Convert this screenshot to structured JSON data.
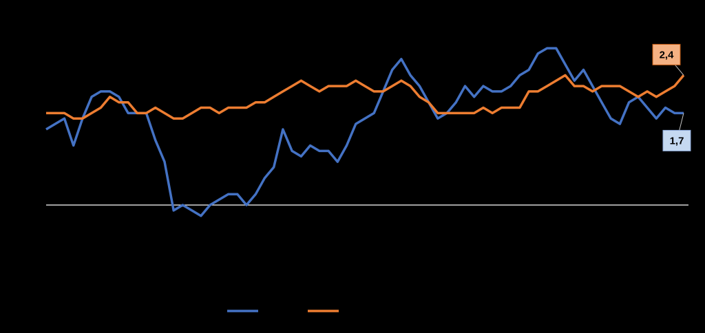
{
  "chart_data": {
    "type": "line",
    "ylim": [
      -1,
      3
    ],
    "series": [
      {
        "color": "#4472c4",
        "values": [
          1.4,
          1.5,
          1.6,
          1.1,
          1.6,
          2.0,
          2.1,
          2.1,
          2.0,
          1.7,
          1.7,
          1.7,
          1.2,
          0.8,
          -0.1,
          0.0,
          -0.1,
          -0.2,
          0.0,
          0.1,
          0.2,
          0.2,
          0.0,
          0.2,
          0.5,
          0.7,
          1.4,
          1.0,
          0.9,
          1.1,
          1.0,
          1.0,
          0.8,
          1.1,
          1.5,
          1.6,
          1.7,
          2.1,
          2.5,
          2.7,
          2.4,
          2.2,
          1.9,
          1.6,
          1.7,
          1.9,
          2.2,
          2.0,
          2.2,
          2.1,
          2.1,
          2.2,
          2.4,
          2.5,
          2.8,
          2.9,
          2.9,
          2.6,
          2.3,
          2.5,
          2.2,
          1.9,
          1.6,
          1.5,
          1.9,
          2.0,
          1.8,
          1.6,
          1.8,
          1.7,
          1.7
        ],
        "value_labels": [
          null,
          null,
          null,
          null,
          null,
          null,
          null,
          null,
          null,
          null,
          null,
          null,
          null,
          null,
          null,
          null,
          null,
          null,
          null,
          null,
          null,
          null,
          null,
          null,
          null,
          null,
          null,
          null,
          null,
          null,
          null,
          null,
          null,
          null,
          null,
          null,
          null,
          null,
          null,
          null,
          null,
          null,
          null,
          null,
          null,
          null,
          null,
          null,
          null,
          null,
          null,
          null,
          null,
          null,
          null,
          null,
          null,
          null,
          null,
          null,
          null,
          null,
          null,
          null,
          null,
          null,
          null,
          null,
          null,
          null,
          "1,7"
        ]
      },
      {
        "color": "#ed7d31",
        "values": [
          1.7,
          1.7,
          1.7,
          1.6,
          1.6,
          1.7,
          1.8,
          2.0,
          1.9,
          1.9,
          1.7,
          1.7,
          1.8,
          1.7,
          1.6,
          1.6,
          1.7,
          1.8,
          1.8,
          1.7,
          1.8,
          1.8,
          1.8,
          1.9,
          1.9,
          2.0,
          2.1,
          2.2,
          2.3,
          2.2,
          2.1,
          2.2,
          2.2,
          2.2,
          2.3,
          2.2,
          2.1,
          2.1,
          2.2,
          2.3,
          2.2,
          2.0,
          1.9,
          1.7,
          1.7,
          1.7,
          1.7,
          1.7,
          1.8,
          1.7,
          1.8,
          1.8,
          1.8,
          2.1,
          2.1,
          2.2,
          2.3,
          2.4,
          2.2,
          2.2,
          2.1,
          2.2,
          2.2,
          2.2,
          2.1,
          2.0,
          2.1,
          2.0,
          2.1,
          2.2,
          2.4
        ],
        "value_labels": [
          null,
          null,
          null,
          null,
          null,
          null,
          null,
          null,
          null,
          null,
          null,
          null,
          null,
          null,
          null,
          null,
          null,
          null,
          null,
          null,
          null,
          null,
          null,
          null,
          null,
          null,
          null,
          null,
          null,
          null,
          null,
          null,
          null,
          null,
          null,
          null,
          null,
          null,
          null,
          null,
          null,
          null,
          null,
          null,
          null,
          null,
          null,
          null,
          null,
          null,
          null,
          null,
          null,
          null,
          null,
          null,
          null,
          null,
          null,
          null,
          null,
          null,
          null,
          null,
          null,
          null,
          null,
          null,
          null,
          null,
          "2,4"
        ]
      }
    ]
  }
}
